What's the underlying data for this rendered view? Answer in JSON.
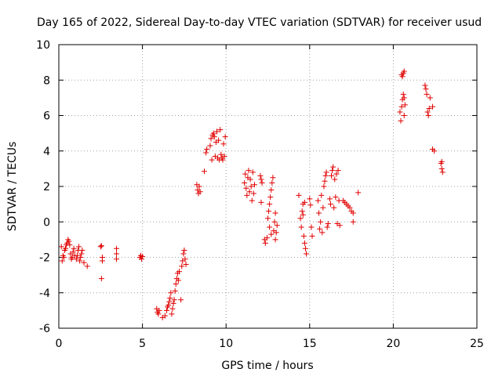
{
  "chart_data": {
    "type": "scatter",
    "title": "Day 165 of 2022, Sidereal Day-to-day VTEC variation (SDTVAR) for receiver usud",
    "xlabel": "GPS time / hours",
    "ylabel": "SDTVAR / TECUs",
    "xlim": [
      0,
      25
    ],
    "ylim": [
      -6,
      10
    ],
    "x_ticks": [
      0,
      5,
      10,
      15,
      20,
      25
    ],
    "x_tick_labels": [
      "0",
      "5",
      "10",
      "15",
      "20",
      "25"
    ],
    "y_ticks": [
      -6,
      -4,
      -2,
      0,
      2,
      4,
      6,
      8,
      10
    ],
    "y_tick_labels": [
      "-6",
      "-4",
      "-2",
      "0",
      "2",
      "4",
      "6",
      "8",
      "10"
    ],
    "grid": true,
    "marker": "plus",
    "marker_color": "#e00000",
    "series": [
      {
        "name": "SDTVAR",
        "points": [
          [
            0.15,
            -1.4
          ],
          [
            0.2,
            -2.2
          ],
          [
            0.25,
            -1.9
          ],
          [
            0.3,
            -2.0
          ],
          [
            0.35,
            -1.6
          ],
          [
            0.4,
            -1.5
          ],
          [
            0.45,
            -1.3
          ],
          [
            0.5,
            -1.2
          ],
          [
            0.55,
            -1.0
          ],
          [
            0.6,
            -1.1
          ],
          [
            0.65,
            -1.3
          ],
          [
            0.7,
            -1.8
          ],
          [
            0.75,
            -2.1
          ],
          [
            0.8,
            -2.0
          ],
          [
            0.85,
            -1.7
          ],
          [
            0.9,
            -1.5
          ],
          [
            0.95,
            -1.9
          ],
          [
            1.05,
            -2.1
          ],
          [
            1.1,
            -1.9
          ],
          [
            1.15,
            -1.6
          ],
          [
            1.2,
            -1.4
          ],
          [
            1.25,
            -2.2
          ],
          [
            1.3,
            -2.0
          ],
          [
            1.35,
            -1.8
          ],
          [
            1.4,
            -1.6
          ],
          [
            1.5,
            -2.3
          ],
          [
            1.7,
            -2.5
          ],
          [
            2.5,
            -1.4
          ],
          [
            2.55,
            -1.35
          ],
          [
            2.6,
            -2.0
          ],
          [
            2.6,
            -2.2
          ],
          [
            2.55,
            -3.2
          ],
          [
            3.45,
            -1.5
          ],
          [
            3.45,
            -1.8
          ],
          [
            3.45,
            -2.1
          ],
          [
            4.85,
            -2.0
          ],
          [
            4.9,
            -1.9
          ],
          [
            4.95,
            -2.1
          ],
          [
            5.0,
            -1.95
          ],
          [
            5.85,
            -4.9
          ],
          [
            5.9,
            -5.1
          ],
          [
            5.95,
            -5.2
          ],
          [
            6.0,
            -5.0
          ],
          [
            6.2,
            -5.4
          ],
          [
            6.35,
            -5.3
          ],
          [
            6.45,
            -5.0
          ],
          [
            6.5,
            -4.8
          ],
          [
            6.55,
            -4.7
          ],
          [
            6.6,
            -4.5
          ],
          [
            6.65,
            -4.3
          ],
          [
            6.7,
            -4.0
          ],
          [
            6.75,
            -5.2
          ],
          [
            6.8,
            -4.9
          ],
          [
            6.85,
            -4.6
          ],
          [
            6.9,
            -4.4
          ],
          [
            6.95,
            -3.9
          ],
          [
            7.0,
            -3.5
          ],
          [
            7.05,
            -3.2
          ],
          [
            7.1,
            -2.9
          ],
          [
            7.15,
            -3.3
          ],
          [
            7.2,
            -2.8
          ],
          [
            7.3,
            -4.4
          ],
          [
            7.35,
            -2.5
          ],
          [
            7.4,
            -2.2
          ],
          [
            7.45,
            -1.8
          ],
          [
            7.5,
            -1.6
          ],
          [
            7.55,
            -2.1
          ],
          [
            7.6,
            -2.4
          ],
          [
            8.25,
            2.1
          ],
          [
            8.3,
            1.8
          ],
          [
            8.35,
            1.6
          ],
          [
            8.4,
            2.0
          ],
          [
            8.45,
            1.7
          ],
          [
            8.7,
            2.85
          ],
          [
            8.8,
            3.9
          ],
          [
            8.85,
            4.1
          ],
          [
            9.05,
            4.3
          ],
          [
            9.1,
            4.7
          ],
          [
            9.15,
            3.5
          ],
          [
            9.2,
            4.9
          ],
          [
            9.25,
            5.0
          ],
          [
            9.3,
            4.8
          ],
          [
            9.35,
            3.7
          ],
          [
            9.4,
            4.5
          ],
          [
            9.45,
            5.1
          ],
          [
            9.5,
            3.6
          ],
          [
            9.55,
            4.6
          ],
          [
            9.6,
            3.5
          ],
          [
            9.65,
            5.2
          ],
          [
            9.7,
            3.8
          ],
          [
            9.75,
            3.6
          ],
          [
            9.8,
            3.5
          ],
          [
            9.85,
            4.4
          ],
          [
            9.9,
            3.7
          ],
          [
            9.95,
            4.8
          ],
          [
            11.1,
            2.2
          ],
          [
            11.15,
            2.7
          ],
          [
            11.2,
            1.9
          ],
          [
            11.25,
            1.5
          ],
          [
            11.3,
            2.5
          ],
          [
            11.35,
            2.9
          ],
          [
            11.4,
            1.7
          ],
          [
            11.45,
            2.4
          ],
          [
            11.5,
            2.0
          ],
          [
            11.55,
            1.2
          ],
          [
            11.6,
            2.8
          ],
          [
            11.65,
            1.6
          ],
          [
            11.7,
            2.1
          ],
          [
            12.05,
            2.6
          ],
          [
            12.1,
            2.4
          ],
          [
            12.1,
            1.1
          ],
          [
            12.15,
            2.2
          ],
          [
            12.3,
            -1.0
          ],
          [
            12.35,
            -1.2
          ],
          [
            12.45,
            -0.9
          ],
          [
            12.5,
            0.2
          ],
          [
            12.55,
            0.6
          ],
          [
            12.6,
            1.0
          ],
          [
            12.65,
            1.4
          ],
          [
            12.7,
            1.8
          ],
          [
            12.75,
            2.2
          ],
          [
            12.8,
            2.5
          ],
          [
            12.85,
            -0.5
          ],
          [
            12.9,
            0.0
          ],
          [
            12.95,
            0.5
          ],
          [
            13.0,
            -0.6
          ],
          [
            13.05,
            -0.2
          ],
          [
            12.95,
            -1.0
          ],
          [
            12.7,
            -0.7
          ],
          [
            12.6,
            -0.3
          ],
          [
            14.35,
            1.5
          ],
          [
            14.45,
            0.2
          ],
          [
            14.5,
            -0.3
          ],
          [
            14.55,
            0.6
          ],
          [
            14.6,
            1.0
          ],
          [
            14.65,
            -0.8
          ],
          [
            14.7,
            -1.2
          ],
          [
            14.75,
            -1.5
          ],
          [
            14.8,
            -1.8
          ],
          [
            14.6,
            0.4
          ],
          [
            14.7,
            1.1
          ],
          [
            15.0,
            1.3
          ],
          [
            15.05,
            0.95
          ],
          [
            15.1,
            -0.3
          ],
          [
            15.15,
            -0.8
          ],
          [
            15.5,
            1.2
          ],
          [
            15.55,
            0.5
          ],
          [
            15.6,
            -0.4
          ],
          [
            15.65,
            0.0
          ],
          [
            15.7,
            1.5
          ],
          [
            15.75,
            -0.6
          ],
          [
            15.8,
            0.8
          ],
          [
            15.85,
            2.0
          ],
          [
            15.9,
            2.3
          ],
          [
            15.95,
            2.6
          ],
          [
            16.0,
            2.8
          ],
          [
            16.05,
            -0.3
          ],
          [
            16.1,
            -0.1
          ],
          [
            16.2,
            1.3
          ],
          [
            16.25,
            1.0
          ],
          [
            16.3,
            2.6
          ],
          [
            16.35,
            2.9
          ],
          [
            16.4,
            3.1
          ],
          [
            16.45,
            0.8
          ],
          [
            16.5,
            2.4
          ],
          [
            16.55,
            1.4
          ],
          [
            16.6,
            2.7
          ],
          [
            16.65,
            -0.1
          ],
          [
            16.7,
            2.9
          ],
          [
            16.75,
            1.2
          ],
          [
            16.8,
            -0.2
          ],
          [
            17.0,
            1.2
          ],
          [
            17.1,
            1.1
          ],
          [
            17.2,
            1.0
          ],
          [
            17.3,
            0.9
          ],
          [
            17.4,
            0.8
          ],
          [
            17.5,
            0.6
          ],
          [
            17.6,
            0.5
          ],
          [
            17.6,
            0.0
          ],
          [
            17.9,
            1.65
          ],
          [
            20.4,
            6.2
          ],
          [
            20.45,
            5.7
          ],
          [
            20.5,
            6.5
          ],
          [
            20.55,
            6.9
          ],
          [
            20.6,
            7.2
          ],
          [
            20.65,
            6.0
          ],
          [
            20.7,
            6.6
          ],
          [
            20.65,
            7.0
          ],
          [
            20.55,
            8.2
          ],
          [
            20.6,
            8.4
          ],
          [
            20.65,
            8.5
          ],
          [
            20.5,
            8.3
          ],
          [
            21.9,
            7.7
          ],
          [
            21.95,
            7.5
          ],
          [
            22.0,
            7.2
          ],
          [
            22.05,
            6.2
          ],
          [
            22.1,
            6.0
          ],
          [
            22.15,
            6.4
          ],
          [
            22.2,
            7.0
          ],
          [
            22.35,
            6.5
          ],
          [
            22.35,
            4.1
          ],
          [
            22.45,
            4.0
          ],
          [
            22.85,
            3.3
          ],
          [
            22.9,
            3.0
          ],
          [
            22.95,
            2.8
          ],
          [
            22.9,
            3.4
          ]
        ]
      }
    ]
  }
}
